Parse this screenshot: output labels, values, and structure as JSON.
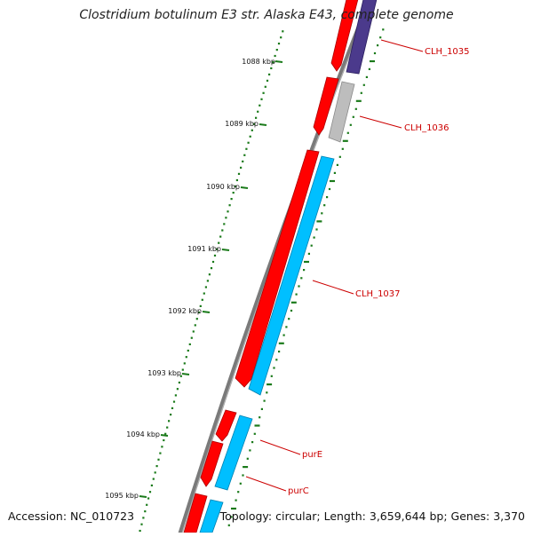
{
  "title": "Clostridium botulinum E3 str. Alaska E43, complete genome",
  "footer": {
    "accession": "Accession: NC_010723",
    "summary": "Topology: circular; Length: 3,659,644 bp; Genes: 3,370"
  },
  "colors": {
    "backbone": "#888888",
    "tick": "#1a7a1a",
    "forward_gene": "#ff0000",
    "reverse_gene": "#00bfff",
    "gene_purple": "#4b3a8c",
    "gene_gray": "#bdbdbd",
    "label": "#cc0000"
  },
  "scale_labels": [
    "1088 kbp",
    "1089 kbp",
    "1090 kbp",
    "1091 kbp",
    "1092 kbp",
    "1093 kbp",
    "1094 kbp",
    "1095 kbp"
  ],
  "gene_labels": [
    "CLH_1035",
    "CLH_1036",
    "CLH_1037",
    "purE",
    "purC"
  ]
}
